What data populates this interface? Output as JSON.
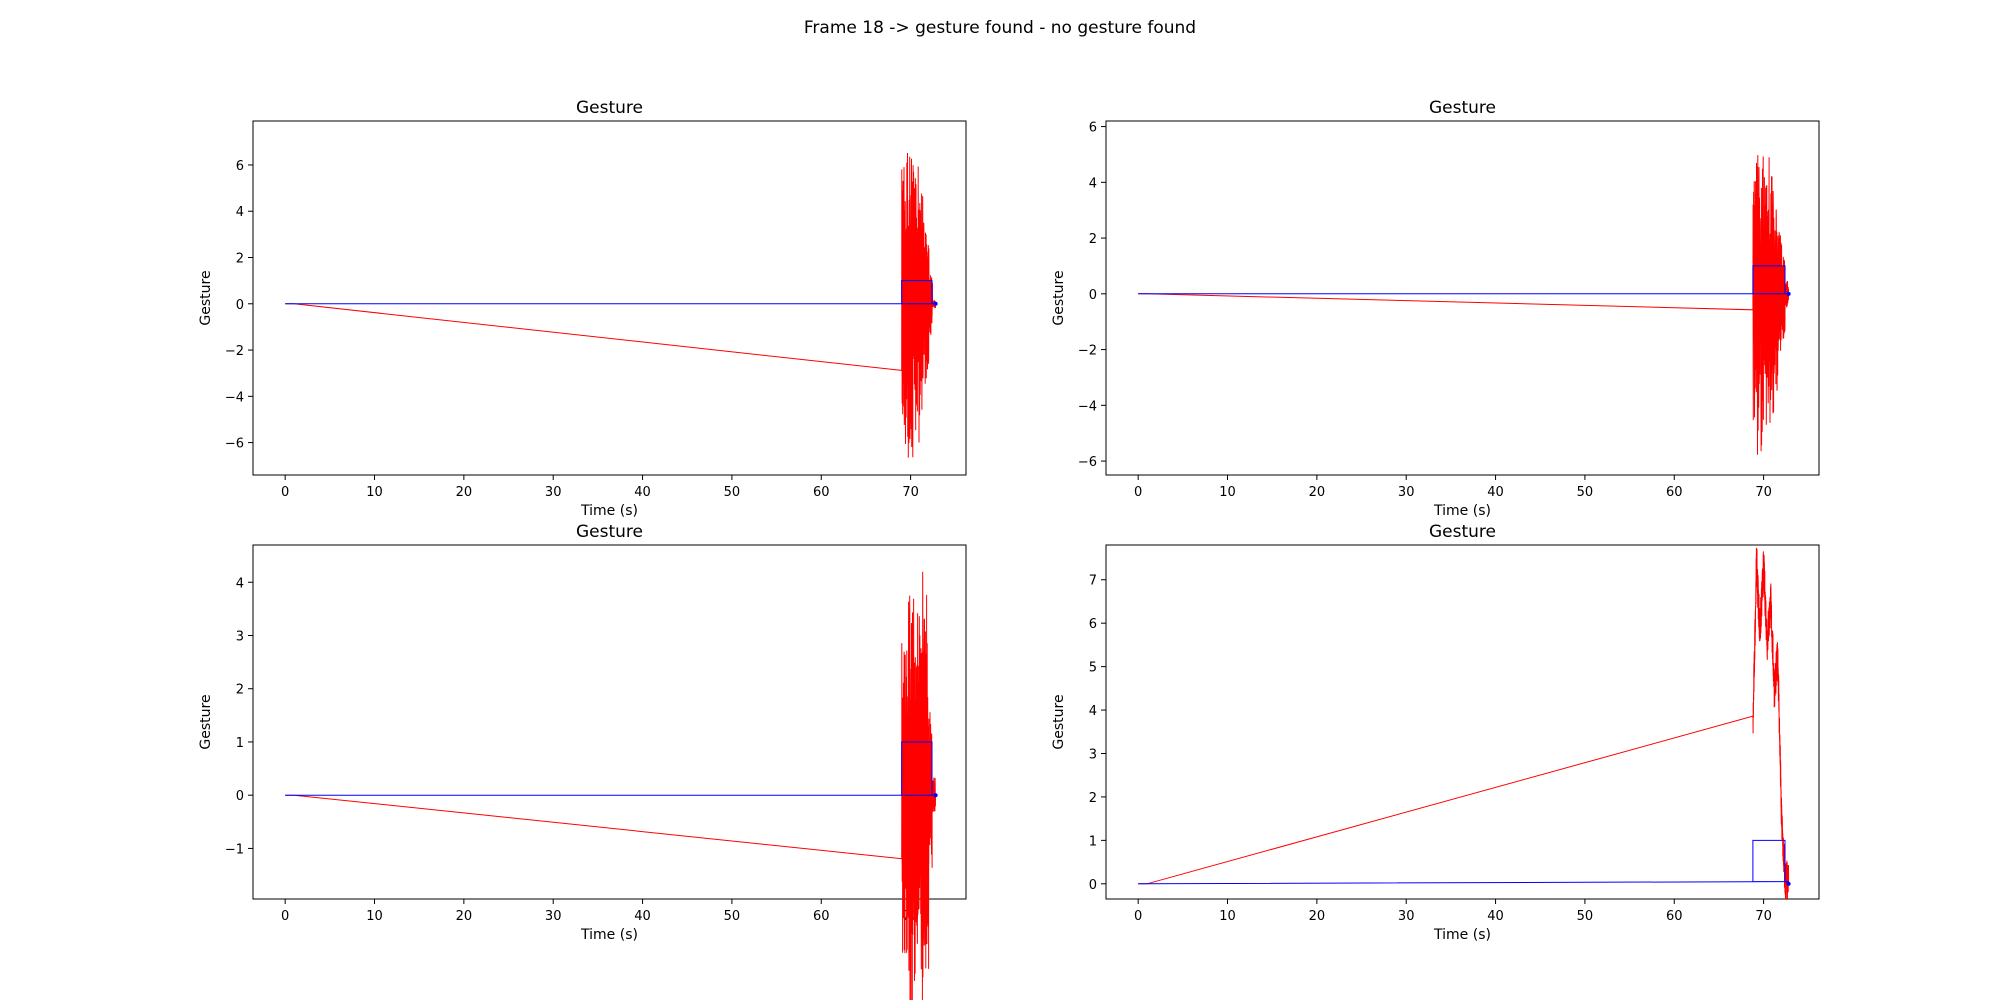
{
  "figure": {
    "suptitle": "Frame 18 -> gesture found - no gesture found"
  },
  "chart_data": [
    {
      "type": "line",
      "title": "Gesture",
      "xlabel": "Time (s)",
      "ylabel": "Gesture",
      "xlim": [
        -3.6,
        76.2
      ],
      "ylim": [
        -7.4,
        7.9
      ],
      "xticks": [
        0,
        10,
        20,
        30,
        40,
        50,
        60,
        70
      ],
      "yticks": [
        -6,
        -4,
        -2,
        0,
        2,
        4,
        6
      ],
      "grid": false,
      "series": [
        {
          "color": "#ff0000",
          "shape": "burst",
          "x_start": 69.0,
          "x_end": 72.8,
          "values_sample": [
            0.0,
            7.2,
            -6.5,
            7.3,
            -5.5,
            6.2,
            -4.8,
            4.0,
            -3.0,
            1.5,
            0.2,
            0.0
          ]
        },
        {
          "color": "#0000ff",
          "shape": "loop",
          "x": [
            0,
            72.8,
            72.4,
            72.4,
            69.0,
            69.0,
            72.4,
            72.8
          ],
          "y": [
            0,
            0,
            0,
            1,
            1,
            0,
            0,
            0
          ]
        }
      ]
    },
    {
      "type": "line",
      "title": "Gesture",
      "xlabel": "Time (s)",
      "ylabel": "Gesture",
      "xlim": [
        -3.6,
        76.2
      ],
      "ylim": [
        -6.5,
        6.2
      ],
      "xticks": [
        0,
        10,
        20,
        30,
        40,
        50,
        60,
        70
      ],
      "yticks": [
        -6,
        -4,
        -2,
        0,
        2,
        4,
        6
      ],
      "grid": false,
      "series": [
        {
          "color": "#ff0000",
          "shape": "burst",
          "x_start": 68.8,
          "x_end": 72.8,
          "values_sample": [
            0.0,
            4.6,
            -5.9,
            5.7,
            -5.2,
            5.1,
            -3.9,
            2.8,
            -1.9,
            0.5,
            0.0
          ]
        },
        {
          "color": "#0000ff",
          "shape": "loop",
          "x": [
            0,
            72.8,
            72.4,
            72.4,
            68.8,
            68.8,
            72.4,
            72.8
          ],
          "y": [
            0,
            0,
            0,
            1,
            1,
            0,
            0,
            0
          ]
        }
      ]
    },
    {
      "type": "line",
      "title": "Gesture",
      "xlabel": "Time (s)",
      "ylabel": "Gesture",
      "xlim": [
        -3.6,
        76.2
      ],
      "ylim": [
        -1.95,
        4.7
      ],
      "xticks": [
        0,
        10,
        20,
        30,
        40,
        50,
        60,
        70
      ],
      "yticks": [
        -1,
        0,
        1,
        2,
        3,
        4
      ],
      "grid": false,
      "series": [
        {
          "color": "#ff0000",
          "shape": "burst",
          "x_start": 69.0,
          "x_end": 72.8,
          "values_sample": [
            0.0,
            3.0,
            -1.6,
            4.1,
            -1.5,
            3.5,
            -1.6,
            4.4,
            -1.6,
            0.4,
            0.0
          ]
        },
        {
          "color": "#0000ff",
          "shape": "loop",
          "x": [
            0,
            72.8,
            72.4,
            72.4,
            69.0,
            69.0,
            72.4,
            72.8
          ],
          "y": [
            0,
            0,
            0,
            1,
            1,
            0,
            0,
            0
          ]
        }
      ]
    },
    {
      "type": "line",
      "title": "Gesture",
      "xlabel": "Time (s)",
      "ylabel": "Gesture",
      "xlim": [
        -3.6,
        76.2
      ],
      "ylim": [
        -0.35,
        7.8
      ],
      "xticks": [
        0,
        10,
        20,
        30,
        40,
        50,
        60,
        70
      ],
      "yticks": [
        0,
        1,
        2,
        3,
        4,
        5,
        6,
        7
      ],
      "grid": false,
      "series": [
        {
          "color": "#ff0000",
          "shape": "level",
          "x_start": 68.8,
          "x_end": 72.8,
          "values_sample": [
            3.5,
            7.4,
            5.8,
            7.3,
            5.6,
            6.5,
            4.5,
            5.2,
            1.5,
            0.1,
            0.0
          ]
        },
        {
          "color": "#0000ff",
          "shape": "loop",
          "x": [
            0,
            72.8,
            72.4,
            72.4,
            68.8,
            68.8,
            72.4,
            72.8
          ],
          "y": [
            0,
            0.05,
            0.05,
            1,
            1,
            0.05,
            0.05,
            0
          ]
        }
      ]
    }
  ]
}
